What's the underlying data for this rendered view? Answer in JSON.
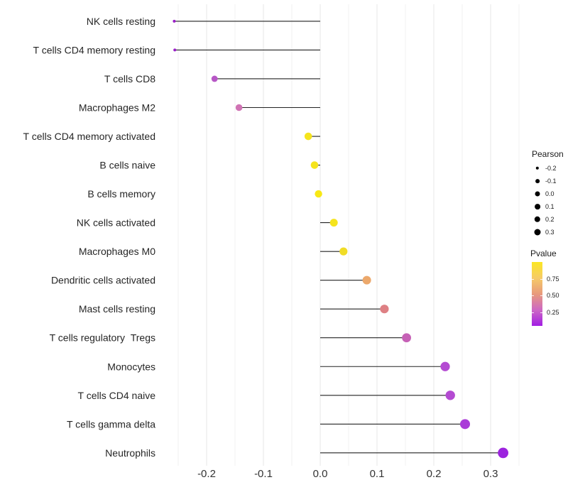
{
  "chart_data": {
    "type": "lollipop",
    "orientation": "horizontal",
    "title": "",
    "xlabel": "",
    "ylabel": "",
    "xlim": [
      -0.286,
      0.351
    ],
    "x_ticks": [
      -0.2,
      -0.1,
      0.0,
      0.1,
      0.2,
      0.3
    ],
    "x_tick_labels": [
      "-0.2",
      "-0.1",
      "0.0",
      "0.1",
      "0.2",
      "0.3"
    ],
    "grid": {
      "vertical_major": true,
      "vertical_minor": true,
      "horizontal": false
    },
    "size_encodes": "Pearson correlation",
    "color_encodes": "Pvalue",
    "points": [
      {
        "category": "NK cells resting",
        "pearson": -0.257,
        "pvalue": 0.08,
        "color": "#9a1ec8",
        "r": 2.0
      },
      {
        "category": "T cells CD4 memory resting",
        "pearson": -0.256,
        "pvalue": 0.08,
        "color": "#9a1ec8",
        "r": 2.0
      },
      {
        "category": "T cells CD8",
        "pearson": -0.186,
        "pvalue": 0.22,
        "color": "#b757c6",
        "r": 4.4
      },
      {
        "category": "Macrophages M2",
        "pearson": -0.143,
        "pvalue": 0.32,
        "color": "#d073b4",
        "r": 4.8
      },
      {
        "category": "T cells CD4 memory activated",
        "pearson": -0.021,
        "pvalue": 0.88,
        "color": "#f5e41d",
        "r": 5.3
      },
      {
        "category": "B cells naive",
        "pearson": -0.01,
        "pvalue": 0.9,
        "color": "#f5e41d",
        "r": 5.3
      },
      {
        "category": "B cells memory",
        "pearson": -0.003,
        "pvalue": 0.95,
        "color": "#f8e814",
        "r": 5.2
      },
      {
        "category": "NK cells activated",
        "pearson": 0.024,
        "pvalue": 0.88,
        "color": "#f5e41d",
        "r": 5.5
      },
      {
        "category": "Macrophages M0",
        "pearson": 0.041,
        "pvalue": 0.82,
        "color": "#f0dc26",
        "r": 5.6
      },
      {
        "category": "Dendritic cells activated",
        "pearson": 0.082,
        "pvalue": 0.6,
        "color": "#eca86b",
        "r": 6.0
      },
      {
        "category": "Mast cells resting",
        "pearson": 0.113,
        "pvalue": 0.5,
        "color": "#de8084",
        "r": 6.1
      },
      {
        "category": "T cells regulatory  Tregs",
        "pearson": 0.152,
        "pvalue": 0.35,
        "color": "#c661b6",
        "r": 6.4
      },
      {
        "category": "Monocytes",
        "pearson": 0.22,
        "pvalue": 0.15,
        "color": "#b44bd2",
        "r": 6.6
      },
      {
        "category": "T cells CD4 naive",
        "pearson": 0.229,
        "pvalue": 0.14,
        "color": "#b44bd2",
        "r": 6.7
      },
      {
        "category": "T cells gamma delta",
        "pearson": 0.255,
        "pvalue": 0.12,
        "color": "#aa3bd8",
        "r": 7.0
      },
      {
        "category": "Neutrophils",
        "pearson": 0.322,
        "pvalue": 0.07,
        "color": "#9c23de",
        "r": 7.4
      }
    ],
    "legends": {
      "size": {
        "title": "Pearson",
        "entries": [
          {
            "label": "-0.2",
            "r": 2.2
          },
          {
            "label": "-0.1",
            "r": 2.9
          },
          {
            "label": "0.0",
            "r": 3.5
          },
          {
            "label": "0.1",
            "r": 3.9
          },
          {
            "label": "0.2",
            "r": 4.2
          },
          {
            "label": "0.3",
            "r": 4.5
          }
        ]
      },
      "color": {
        "title": "Pvalue",
        "range": [
          0.05,
          1.0
        ],
        "tick_values": [
          0.75,
          0.5,
          0.25
        ],
        "tick_labels": [
          "0.75",
          "0.50",
          "0.25"
        ],
        "gradient_top_to_bottom": [
          "#fbe723",
          "#f6cb67",
          "#e89a7c",
          "#cd68c4",
          "#a21ee4"
        ]
      }
    },
    "style": {
      "stem_color": "#222222",
      "grid_major_color": "#e7e7e7",
      "grid_minor_color": "#f2f2f2",
      "axis_text_color": "#333333",
      "category_text_color": "#262626",
      "background": "#ffffff"
    }
  }
}
